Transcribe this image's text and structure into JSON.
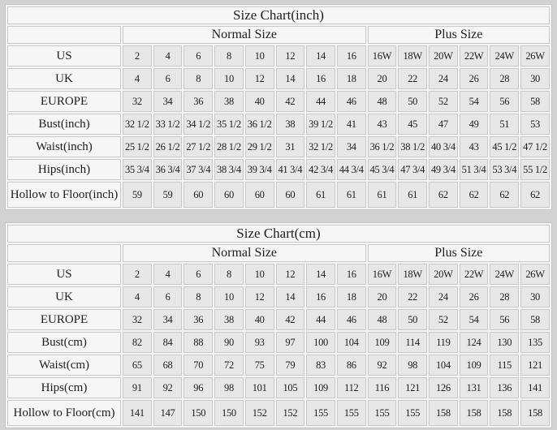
{
  "colors": {
    "page_background": "#d2d2d2",
    "header_cell_background": "#f6f6f6",
    "value_cell_background": "#e7e7e7",
    "cell_border": "#c9c9c9",
    "text": "#1e1e1e"
  },
  "chart_data": [
    {
      "type": "table",
      "title": "Size Chart(inch)",
      "group_headers": [
        {
          "label": "Normal Size",
          "colspan": 8
        },
        {
          "label": "Plus Size",
          "colspan": 6
        }
      ],
      "rows": [
        {
          "label": "US",
          "values": [
            "2",
            "4",
            "6",
            "8",
            "10",
            "12",
            "14",
            "16",
            "16W",
            "18W",
            "20W",
            "22W",
            "24W",
            "26W"
          ]
        },
        {
          "label": "UK",
          "values": [
            "4",
            "6",
            "8",
            "10",
            "12",
            "14",
            "16",
            "18",
            "20",
            "22",
            "24",
            "26",
            "28",
            "30"
          ]
        },
        {
          "label": "EUROPE",
          "values": [
            "32",
            "34",
            "36",
            "38",
            "40",
            "42",
            "44",
            "46",
            "48",
            "50",
            "52",
            "54",
            "56",
            "58"
          ]
        },
        {
          "label": "Bust(inch)",
          "values": [
            "32 1/2",
            "33 1/2",
            "34 1/2",
            "35 1/2",
            "36 1/2",
            "38",
            "39 1/2",
            "41",
            "43",
            "45",
            "47",
            "49",
            "51",
            "53"
          ]
        },
        {
          "label": "Waist(inch)",
          "values": [
            "25 1/2",
            "26 1/2",
            "27 1/2",
            "28 1/2",
            "29 1/2",
            "31",
            "32 1/2",
            "34",
            "36 1/2",
            "38 1/2",
            "40 3/4",
            "43",
            "45 1/2",
            "47 1/2"
          ]
        },
        {
          "label": "Hips(inch)",
          "values": [
            "35 3/4",
            "36 3/4",
            "37 3/4",
            "38 3/4",
            "39 3/4",
            "41 3/4",
            "42 3/4",
            "44 3/4",
            "45 3/4",
            "47 3/4",
            "49 3/4",
            "51 3/4",
            "53 3/4",
            "55 1/2"
          ]
        },
        {
          "label": "Hollow to Floor(inch)",
          "values": [
            "59",
            "59",
            "60",
            "60",
            "60",
            "60",
            "61",
            "61",
            "61",
            "61",
            "62",
            "62",
            "62",
            "62"
          ]
        }
      ]
    },
    {
      "type": "table",
      "title": "Size Chart(cm)",
      "group_headers": [
        {
          "label": "Normal Size",
          "colspan": 8
        },
        {
          "label": "Plus Size",
          "colspan": 6
        }
      ],
      "rows": [
        {
          "label": "US",
          "values": [
            "2",
            "4",
            "6",
            "8",
            "10",
            "12",
            "14",
            "16",
            "16W",
            "18W",
            "20W",
            "22W",
            "24W",
            "26W"
          ]
        },
        {
          "label": "UK",
          "values": [
            "4",
            "6",
            "8",
            "10",
            "12",
            "14",
            "16",
            "18",
            "20",
            "22",
            "24",
            "26",
            "28",
            "30"
          ]
        },
        {
          "label": "EUROPE",
          "values": [
            "32",
            "34",
            "36",
            "38",
            "40",
            "42",
            "44",
            "46",
            "48",
            "50",
            "52",
            "54",
            "56",
            "58"
          ]
        },
        {
          "label": "Bust(cm)",
          "values": [
            "82",
            "84",
            "88",
            "90",
            "93",
            "97",
            "100",
            "104",
            "109",
            "114",
            "119",
            "124",
            "130",
            "135"
          ]
        },
        {
          "label": "Waist(cm)",
          "values": [
            "65",
            "68",
            "70",
            "72",
            "75",
            "79",
            "83",
            "86",
            "92",
            "98",
            "104",
            "109",
            "115",
            "121"
          ]
        },
        {
          "label": "Hips(cm)",
          "values": [
            "91",
            "92",
            "96",
            "98",
            "101",
            "105",
            "109",
            "112",
            "116",
            "121",
            "126",
            "131",
            "136",
            "141"
          ]
        },
        {
          "label": "Hollow to Floor(cm)",
          "values": [
            "141",
            "147",
            "150",
            "150",
            "152",
            "152",
            "155",
            "155",
            "155",
            "155",
            "158",
            "158",
            "158",
            "158"
          ]
        }
      ]
    }
  ]
}
